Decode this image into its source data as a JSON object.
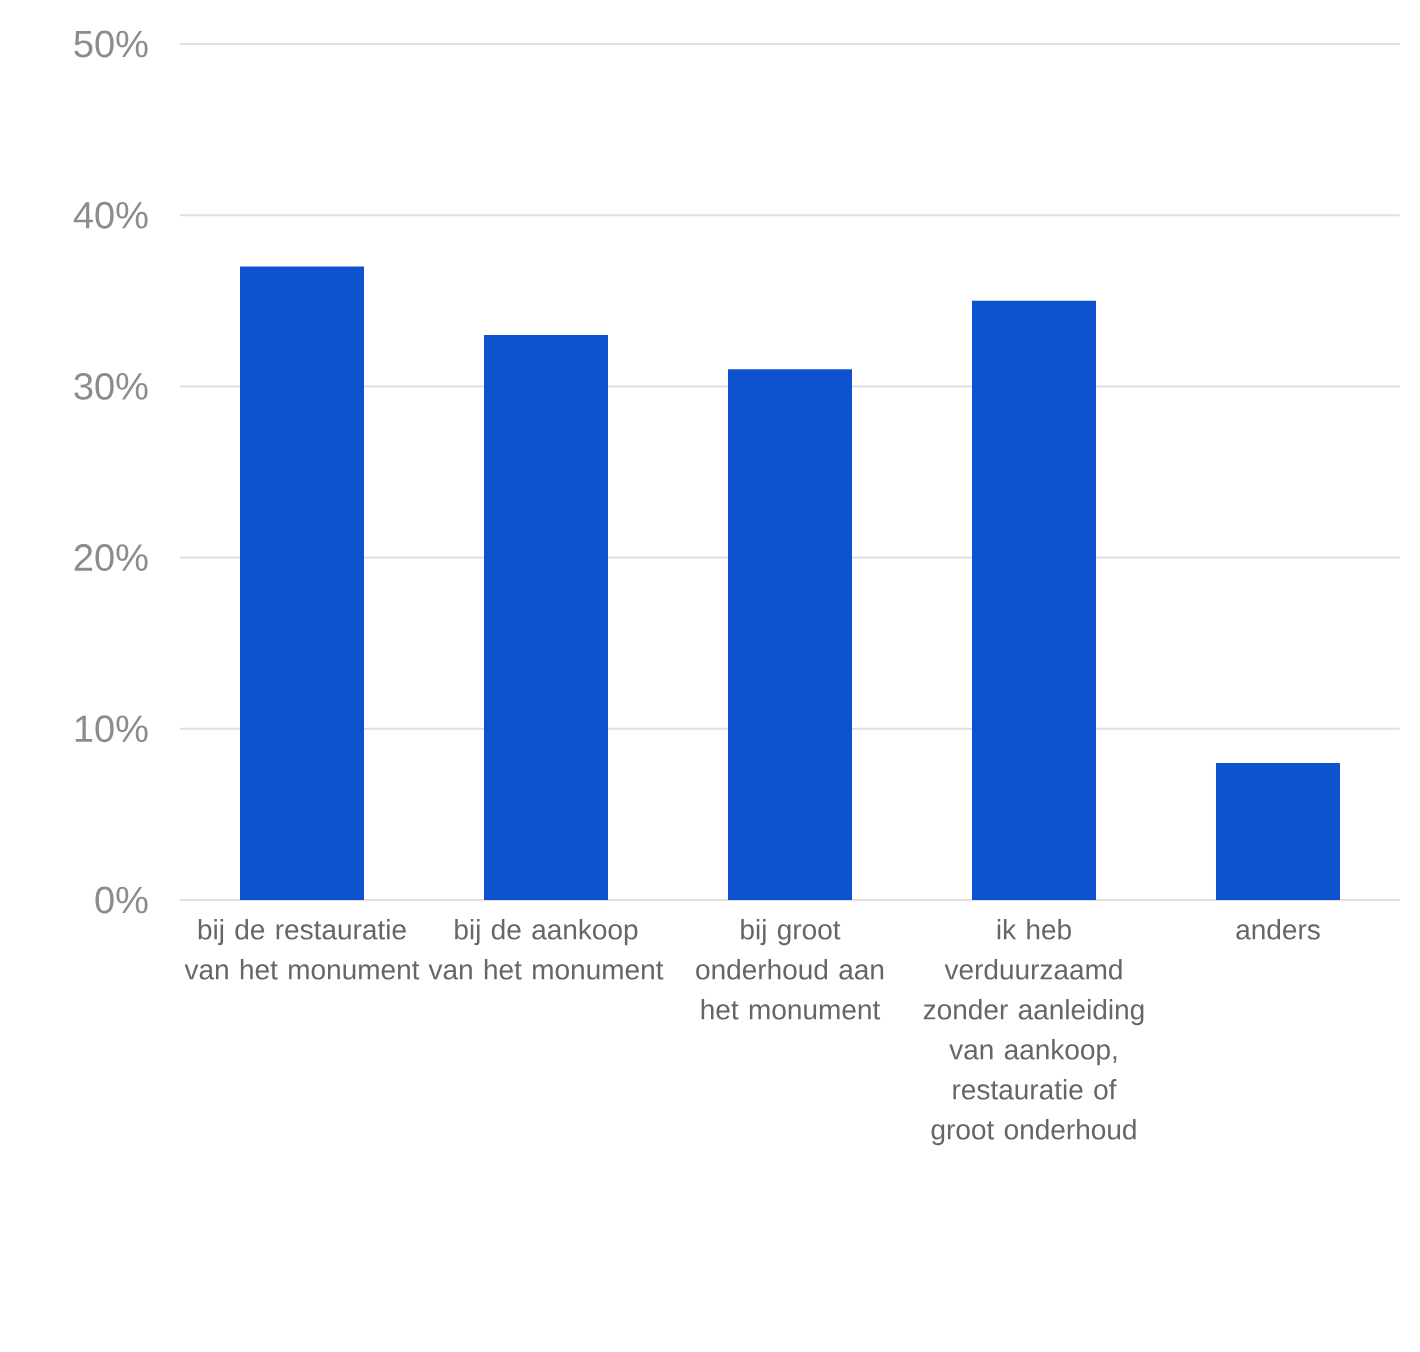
{
  "chart_data": {
    "type": "bar",
    "categories": [
      "bij de restauratie van het monument",
      "bij de aankoop van het monument",
      "bij groot onderhoud aan het monument",
      "ik heb verduurzaamd zonder aanleiding van aankoop, restauratie of groot onderhoud",
      "anders"
    ],
    "values": [
      37,
      33,
      31,
      35,
      8
    ],
    "color": "#0f52cf",
    "ylim": [
      0,
      50
    ],
    "yticks": [
      {
        "value": 0,
        "label": "0%"
      },
      {
        "value": 10,
        "label": "10%"
      },
      {
        "value": 20,
        "label": "20%"
      },
      {
        "value": 30,
        "label": "30%"
      },
      {
        "value": 40,
        "label": "40%"
      },
      {
        "value": 50,
        "label": "50%"
      }
    ],
    "grid": "y"
  }
}
